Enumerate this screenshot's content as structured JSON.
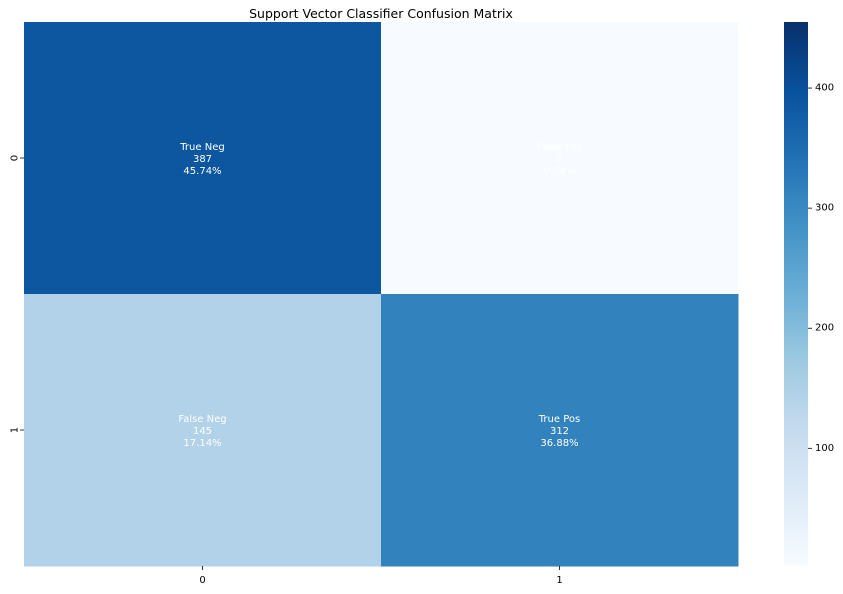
{
  "chart_data": {
    "type": "heatmap",
    "title": "Support Vector Classifier Confusion Matrix",
    "xlabel": "",
    "ylabel": "",
    "x_tick_labels": [
      "0",
      "1"
    ],
    "y_tick_labels": [
      "0",
      "1"
    ],
    "cells": [
      {
        "row": 0,
        "col": 0,
        "label": "True Neg",
        "count_text": "387",
        "percent_text": "45.74%",
        "value": 387
      },
      {
        "row": 0,
        "col": 1,
        "label": "False Pos",
        "count_text": "2",
        "percent_text": "0.24%",
        "value": 2
      },
      {
        "row": 1,
        "col": 0,
        "label": "False Neg",
        "count_text": "145",
        "percent_text": "17.14%",
        "value": 145
      },
      {
        "row": 1,
        "col": 1,
        "label": "True Pos",
        "count_text": "312",
        "percent_text": "36.88%",
        "value": 312
      }
    ],
    "colorbar": {
      "colormap": "Blues",
      "ticks": [
        {
          "value": 100,
          "label": "100"
        },
        {
          "value": 200,
          "label": "200"
        },
        {
          "value": 300,
          "label": "300"
        },
        {
          "value": 400,
          "label": "400"
        }
      ],
      "range": [
        2,
        455
      ]
    },
    "annotation_color": "#ffffff",
    "grid": false
  }
}
